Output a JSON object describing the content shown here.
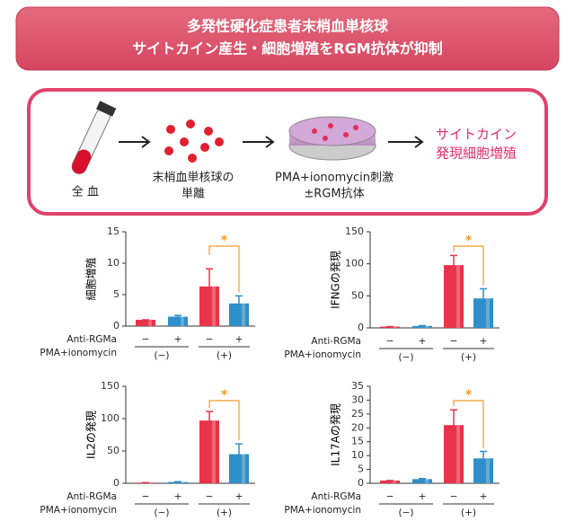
{
  "header": {
    "lines": [
      "多発性硬化症患者末梢血単核球",
      "サイトカイン産生・細胞増殖をRGM抗体が抑制"
    ]
  },
  "flow": {
    "steps": [
      {
        "lines": [
          "全 血"
        ]
      },
      {
        "lines": [
          "末梢血単核球の",
          "単離"
        ]
      },
      {
        "lines": [
          "PMA+ionomycin刺激",
          "±RGM抗体"
        ]
      },
      {
        "lines": [
          "サイトカイン",
          "発現細胞増殖"
        ]
      }
    ]
  },
  "chart_data": [
    {
      "type": "bar",
      "y_label": "細胞増殖",
      "ylim": [
        0,
        15
      ],
      "yticks": [
        0,
        5,
        10,
        15
      ],
      "values": [
        1,
        1.5,
        6.3,
        3.6
      ],
      "errors": [
        0,
        0.2,
        2.8,
        1.2
      ],
      "bar_colors": [
        "#e8334a",
        "#2f8fc9",
        "#e8334a",
        "#2f8fc9"
      ],
      "antibody_label": "Anti-RGMa",
      "antibody": [
        "−",
        "+",
        "−",
        "+"
      ],
      "stim_label": "PMA+ionomycin",
      "stim": [
        "(−)",
        "(+)"
      ],
      "annotation": "*"
    },
    {
      "type": "bar",
      "y_label": "IFNGの発現",
      "ylim": [
        0,
        150
      ],
      "yticks": [
        0,
        50,
        100,
        150
      ],
      "values": [
        2,
        3,
        98,
        46
      ],
      "errors": [
        0,
        0.5,
        15,
        15
      ],
      "bar_colors": [
        "#e8334a",
        "#2f8fc9",
        "#e8334a",
        "#2f8fc9"
      ],
      "antibody_label": "Anti-RGMa",
      "antibody": [
        "−",
        "+",
        "−",
        "+"
      ],
      "stim_label": "PMA+ionomycin",
      "stim": [
        "(−)",
        "(+)"
      ],
      "annotation": "*"
    },
    {
      "type": "bar",
      "y_label": "IL2の発現",
      "ylim": [
        0,
        150
      ],
      "yticks": [
        0,
        50,
        100,
        150
      ],
      "values": [
        1,
        2,
        97,
        45
      ],
      "errors": [
        0,
        0.5,
        14,
        16
      ],
      "bar_colors": [
        "#e8334a",
        "#2f8fc9",
        "#e8334a",
        "#2f8fc9"
      ],
      "antibody_label": "Anti-RGMa",
      "antibody": [
        "−",
        "+",
        "−",
        "+"
      ],
      "stim_label": "PMA+ionomycin",
      "stim": [
        "(−)",
        "(+)"
      ],
      "annotation": "*"
    },
    {
      "type": "bar",
      "y_label": "IL17Aの発現",
      "ylim": [
        0,
        35
      ],
      "yticks": [
        0,
        5,
        10,
        15,
        20,
        25,
        30,
        35
      ],
      "values": [
        1,
        1.5,
        21,
        9
      ],
      "errors": [
        0,
        0.2,
        5.5,
        2.5
      ],
      "bar_colors": [
        "#e8334a",
        "#2f8fc9",
        "#e8334a",
        "#2f8fc9"
      ],
      "antibody_label": "Anti-RGMa",
      "antibody": [
        "−",
        "+",
        "−",
        "+"
      ],
      "stim_label": "PMA+ionomycin",
      "stim": [
        "(−)",
        "(+)"
      ],
      "annotation": "*"
    }
  ]
}
